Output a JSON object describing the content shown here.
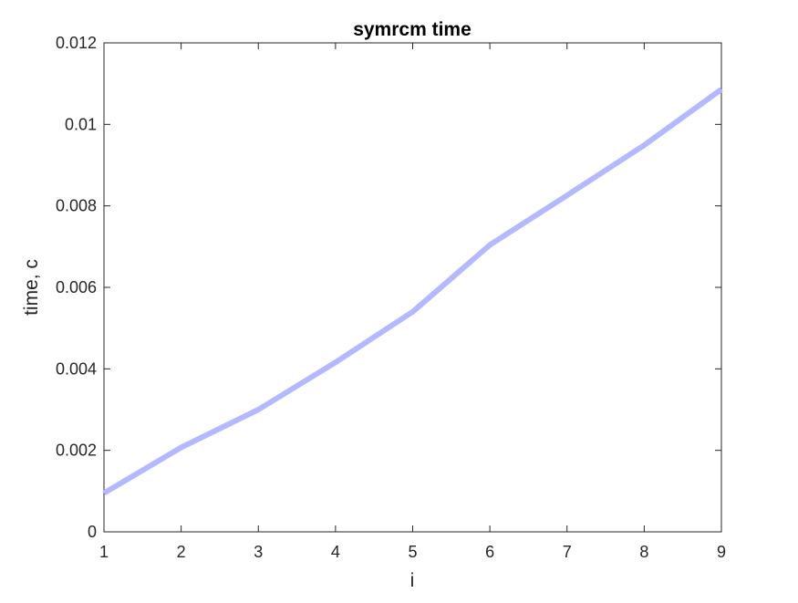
{
  "chart_data": {
    "type": "line",
    "title": "symrcm time",
    "xlabel": "i",
    "ylabel": "time, c",
    "xlim": [
      1,
      9
    ],
    "ylim": [
      0,
      0.012
    ],
    "xticks": [
      1,
      2,
      3,
      4,
      5,
      6,
      7,
      8,
      9
    ],
    "yticks": [
      0,
      0.002,
      0.004,
      0.006,
      0.008,
      0.01,
      0.012
    ],
    "xtick_labels": [
      "1",
      "2",
      "3",
      "4",
      "5",
      "6",
      "7",
      "8",
      "9"
    ],
    "ytick_labels": [
      "0",
      "0.002",
      "0.004",
      "0.006",
      "0.008",
      "0.01",
      "0.012"
    ],
    "grid": false,
    "series": [
      {
        "color": "#b3b8ff",
        "x": [
          1,
          2,
          3,
          4,
          5,
          6,
          7,
          8,
          9
        ],
        "y": [
          0.00095,
          0.00207,
          0.003,
          0.00416,
          0.0054,
          0.00704,
          0.00826,
          0.00949,
          0.01086
        ]
      }
    ]
  }
}
